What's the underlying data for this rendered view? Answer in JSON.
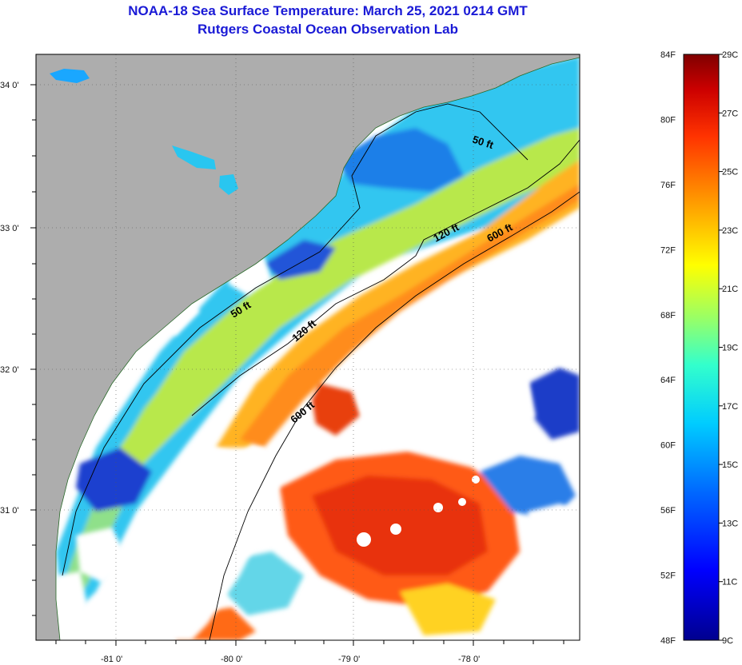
{
  "header": {
    "title_line1": "NOAA-18 Sea Surface Temperature:  March 25, 2021 0214 GMT",
    "title_line2": "Rutgers Coastal Ocean Observation Lab"
  },
  "map": {
    "lat_labels": [
      "34 0'",
      "33 0'",
      "32 0'",
      "31 0'"
    ],
    "lon_labels": [
      "-81 0'",
      "-80 0'",
      "-79 0'",
      "-78 0'"
    ],
    "contours": [
      {
        "label": "50 ft",
        "depth_ft": 50
      },
      {
        "label": "50 ft",
        "depth_ft": 50
      },
      {
        "label": "120 ft",
        "depth_ft": 120
      },
      {
        "label": "120 ft",
        "depth_ft": 120
      },
      {
        "label": "600 ft",
        "depth_ft": 600
      },
      {
        "label": "600 ft",
        "depth_ft": 600
      }
    ],
    "colors": {
      "land": "#adadad",
      "cloud": "#ffffff"
    }
  },
  "colorbar": {
    "fahrenheit_labels": [
      "84F",
      "80F",
      "76F",
      "72F",
      "68F",
      "64F",
      "60F",
      "56F",
      "52F",
      "48F"
    ],
    "celsius_labels": [
      "29C",
      "27C",
      "25C",
      "23C",
      "21C",
      "19C",
      "17C",
      "15C",
      "13C",
      "11C",
      "9C"
    ],
    "range_f": [
      48,
      84
    ],
    "range_c": [
      9,
      29
    ],
    "colors": [
      "#00008f",
      "#0000ff",
      "#0066ff",
      "#00ccff",
      "#33ffcc",
      "#99ff66",
      "#ffff00",
      "#ff9900",
      "#ff3300",
      "#cc0000",
      "#800000"
    ]
  }
}
